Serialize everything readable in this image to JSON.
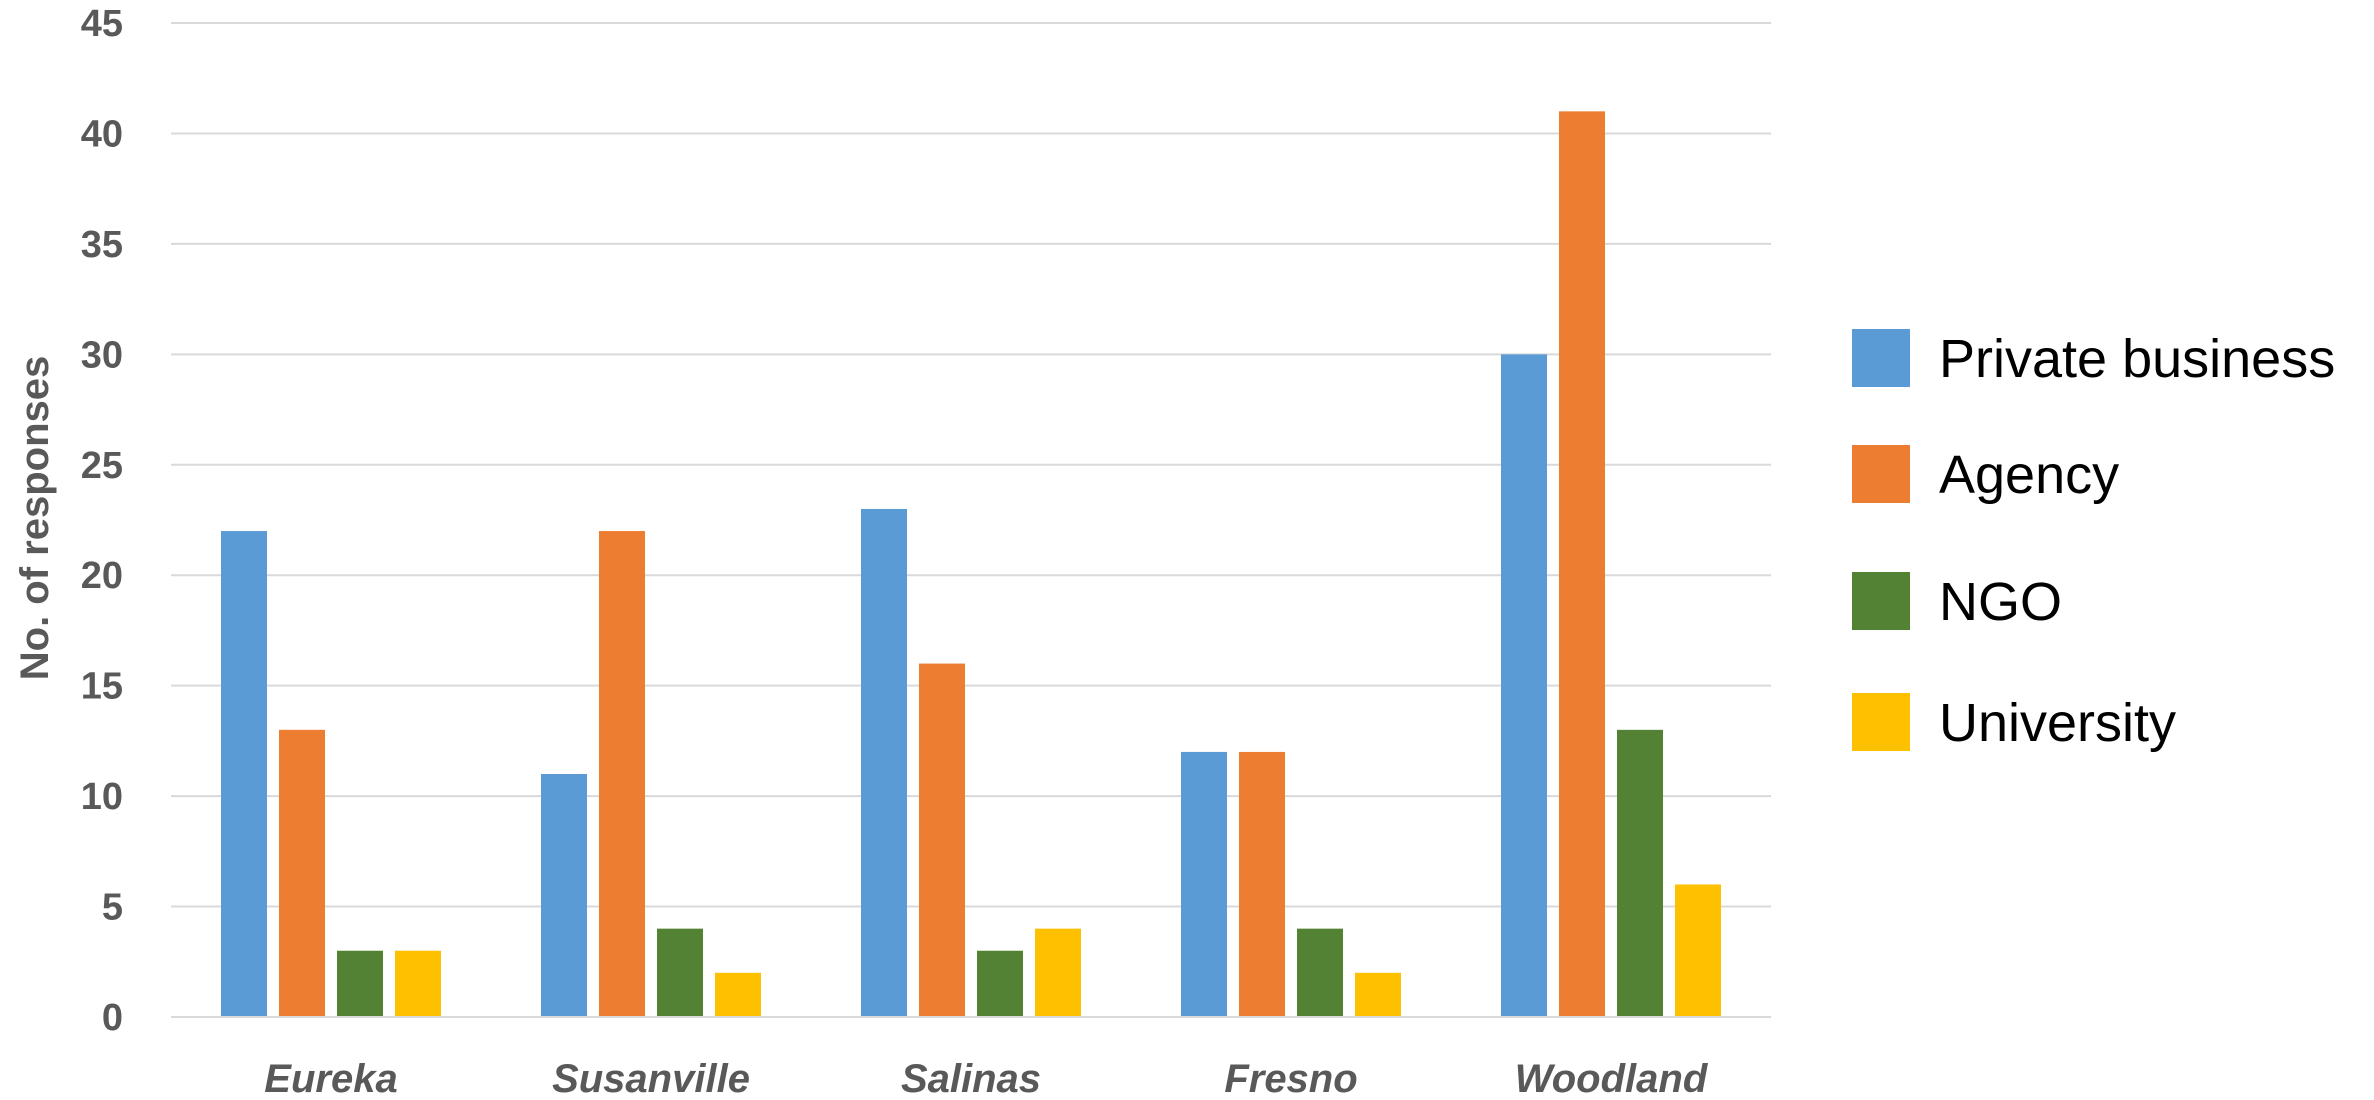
{
  "chart_data": {
    "type": "bar",
    "title": "",
    "xlabel": "",
    "ylabel": "No. of responses",
    "ylim": [
      0,
      45
    ],
    "yticks": [
      0,
      5,
      10,
      15,
      20,
      25,
      30,
      35,
      40,
      45
    ],
    "ytick_labels": [
      "0",
      "5",
      "10",
      "15",
      "20",
      "25",
      "30",
      "35",
      "40",
      "45"
    ],
    "grid": true,
    "legend_position": "right",
    "categories": [
      "Eureka",
      "Susanville",
      "Salinas",
      "Fresno",
      "Woodland"
    ],
    "series": [
      {
        "name": "Private business",
        "color": "#5B9BD5",
        "values": [
          22,
          11,
          23,
          12,
          30
        ]
      },
      {
        "name": "Agency",
        "color": "#ED7D31",
        "values": [
          13,
          22,
          16,
          12,
          41
        ]
      },
      {
        "name": "NGO",
        "color": "#548235",
        "values": [
          3,
          4,
          3,
          4,
          13
        ]
      },
      {
        "name": "University",
        "color": "#FFC000",
        "values": [
          3,
          2,
          4,
          2,
          6
        ]
      }
    ]
  }
}
